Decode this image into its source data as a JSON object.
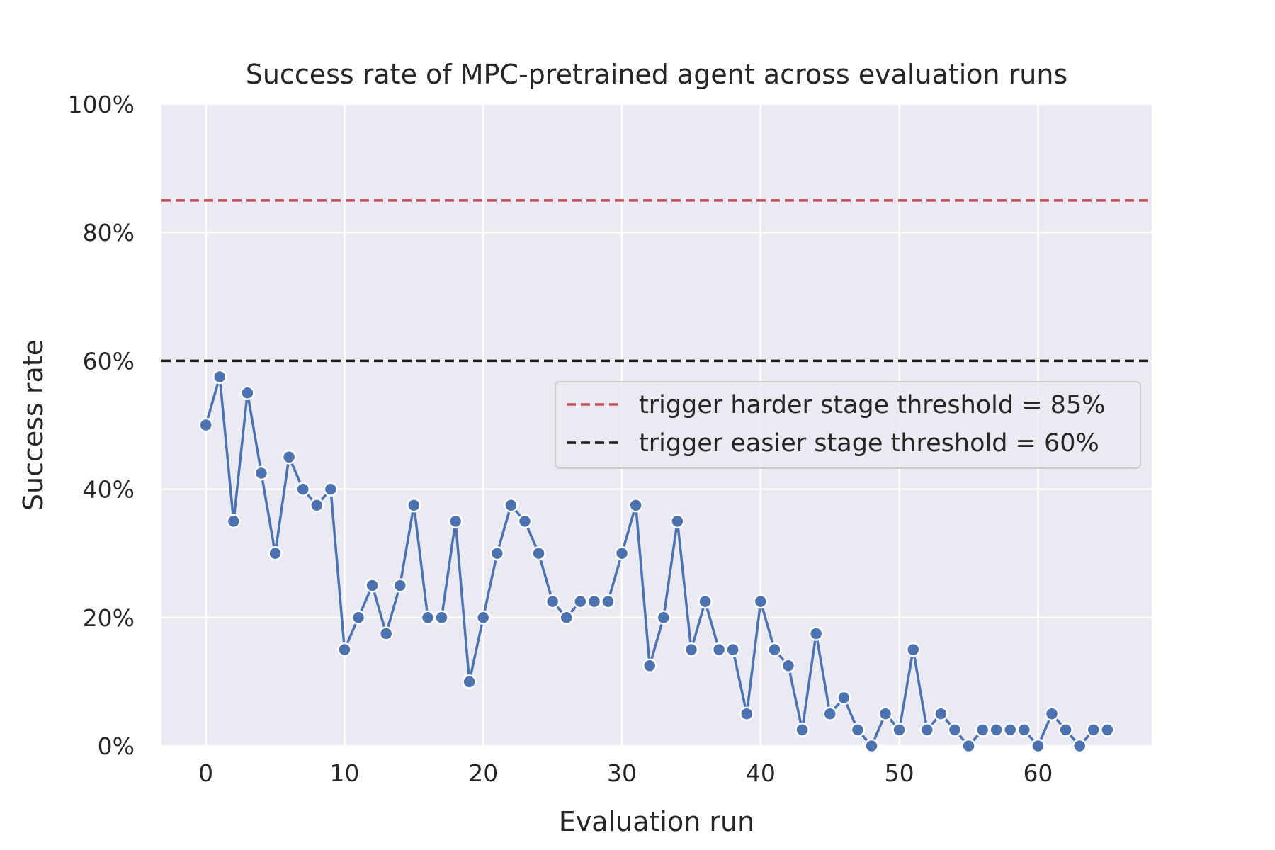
{
  "chart_data": {
    "type": "line",
    "title": "Success rate of MPC-pretrained agent across evaluation runs",
    "xlabel": "Evaluation run",
    "ylabel": "Success rate",
    "xlim": [
      -3.2,
      68.2
    ],
    "ylim": [
      0,
      100
    ],
    "x_ticks": [
      0,
      10,
      20,
      30,
      40,
      50,
      60
    ],
    "y_ticks": [
      0,
      20,
      40,
      60,
      80,
      100
    ],
    "y_tick_labels": [
      "0%",
      "20%",
      "40%",
      "60%",
      "80%",
      "100%"
    ],
    "grid": true,
    "background": "#eaeaf2",
    "series": [
      {
        "name": "",
        "color": "#4c72b0",
        "marker": "circle",
        "x": [
          0,
          1,
          2,
          3,
          4,
          5,
          6,
          7,
          8,
          9,
          10,
          11,
          12,
          13,
          14,
          15,
          16,
          17,
          18,
          19,
          20,
          21,
          22,
          23,
          24,
          25,
          26,
          27,
          28,
          29,
          30,
          31,
          32,
          33,
          34,
          35,
          36,
          37,
          38,
          39,
          40,
          41,
          42,
          43,
          44,
          45,
          46,
          47,
          48,
          49,
          50,
          51,
          52,
          53,
          54,
          55,
          56,
          57,
          58,
          59,
          60,
          61,
          62,
          63,
          64,
          65
        ],
        "values": [
          50,
          57.5,
          35,
          55,
          42.5,
          30,
          45,
          40,
          37.5,
          40,
          15,
          20,
          25,
          17.5,
          25,
          37.5,
          20,
          20,
          35,
          10,
          20,
          30,
          37.5,
          35,
          30,
          22.5,
          20,
          22.5,
          22.5,
          22.5,
          30,
          37.5,
          12.5,
          20,
          35,
          15,
          22.5,
          15,
          15,
          5,
          22.5,
          15,
          12.5,
          2.5,
          17.5,
          5,
          7.5,
          2.5,
          0,
          5,
          2.5,
          15,
          2.5,
          5,
          2.5,
          0,
          2.5,
          2.5,
          2.5,
          2.5,
          0,
          5,
          2.5,
          0,
          2.5,
          2.5
        ]
      }
    ],
    "reference_lines": [
      {
        "label": "trigger harder stage threshold = 85%",
        "value": 85,
        "color": "#c44e52",
        "style": "dashed"
      },
      {
        "label": "trigger easier stage threshold = 60%",
        "value": 60,
        "color": "#1a1a1a",
        "style": "dashed"
      }
    ],
    "legend_position": "center-right"
  }
}
